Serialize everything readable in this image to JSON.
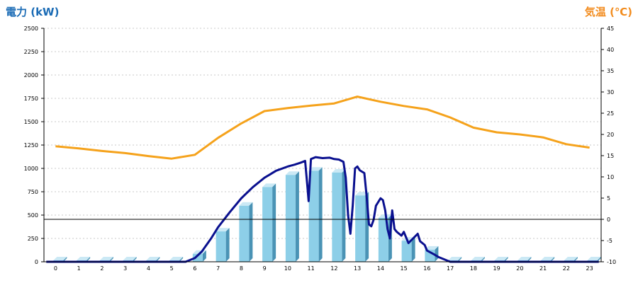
{
  "chart_data": {
    "type": "bar+line",
    "categories": [
      "0",
      "1",
      "2",
      "3",
      "4",
      "5",
      "6",
      "7",
      "8",
      "9",
      "10",
      "11",
      "12",
      "13",
      "14",
      "15",
      "16",
      "17",
      "18",
      "19",
      "20",
      "21",
      "22",
      "23"
    ],
    "ylabel_left": "電力 (kW)",
    "ylabel_right": "気温 (℃)",
    "ylim_left": [
      0,
      2500
    ],
    "yticks_left": [
      0,
      250,
      500,
      750,
      1000,
      1250,
      1500,
      1750,
      2000,
      2250,
      2500
    ],
    "ylim_right": [
      -10,
      45
    ],
    "yticks_right": [
      -10,
      -5,
      0,
      5,
      10,
      15,
      20,
      25,
      30,
      35,
      40,
      45
    ],
    "grid": true,
    "series": [
      {
        "type": "bar",
        "axis": "left",
        "values": [
          15,
          15,
          15,
          15,
          15,
          15,
          85,
          325,
          600,
          800,
          930,
          975,
          955,
          710,
          470,
          225,
          130,
          15,
          15,
          15,
          15,
          15,
          15,
          15
        ]
      },
      {
        "type": "line",
        "axis": "left",
        "x": [
          -0.4,
          5.6,
          6.0,
          6.3,
          6.7,
          7.0,
          7.5,
          8.0,
          8.5,
          9.0,
          9.5,
          10.0,
          10.3,
          10.6,
          10.75,
          10.85,
          10.9,
          11.0,
          11.2,
          11.5,
          11.8,
          12.0,
          12.2,
          12.4,
          12.5,
          12.6,
          12.7,
          12.8,
          12.9,
          13.0,
          13.1,
          13.3,
          13.4,
          13.5,
          13.6,
          13.7,
          13.8,
          14.0,
          14.1,
          14.2,
          14.3,
          14.4,
          14.5,
          14.6,
          14.7,
          14.8,
          14.9,
          15.0,
          15.2,
          15.4,
          15.6,
          15.7,
          15.9,
          16.0,
          16.3,
          16.5,
          16.8,
          17.0,
          17.5,
          23.4
        ],
        "y": [
          0,
          0,
          40,
          110,
          250,
          370,
          530,
          680,
          800,
          900,
          975,
          1020,
          1040,
          1065,
          1080,
          800,
          650,
          1100,
          1120,
          1110,
          1115,
          1100,
          1095,
          1070,
          900,
          500,
          300,
          600,
          1000,
          1020,
          980,
          950,
          700,
          400,
          380,
          450,
          600,
          680,
          660,
          550,
          350,
          250,
          550,
          350,
          320,
          300,
          280,
          320,
          200,
          250,
          300,
          220,
          180,
          120,
          80,
          50,
          20,
          0,
          0,
          0
        ]
      },
      {
        "type": "line",
        "axis": "right",
        "values": [
          17.2,
          16.7,
          16.1,
          15.6,
          14.9,
          14.3,
          15.2,
          19.2,
          22.6,
          25.5,
          26.2,
          26.8,
          27.3,
          28.9,
          27.7,
          26.7,
          25.9,
          24.0,
          21.6,
          20.5,
          20.0,
          19.3,
          17.7,
          16.9
        ]
      }
    ]
  },
  "colors": {
    "left_title": "#1a6bb5",
    "right_title": "#f28c1e",
    "bar_front": "#8dcfe8",
    "bar_side": "#4a93b5",
    "bar_top": "#cbe9f5",
    "power_line": "#0a108f",
    "temp_line": "#f5a21b",
    "grid": "#c8c8c8",
    "zero_line": "#000000"
  }
}
